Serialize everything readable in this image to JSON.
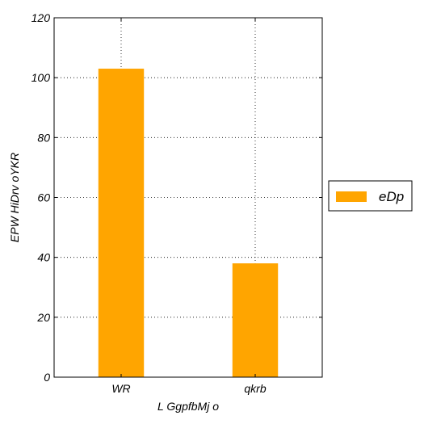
{
  "chart_data": {
    "type": "bar",
    "categories": [
      "WR",
      "qkrb"
    ],
    "series": [
      {
        "name": "eDp",
        "values": [
          103,
          38
        ],
        "color": "#ffa500"
      }
    ],
    "title": "",
    "xlabel": "L GgpfbMj o",
    "ylabel": "EPW HiDrv oYKR",
    "ylim": [
      0,
      120
    ],
    "yticks": [
      0,
      20,
      40,
      60,
      80,
      100,
      120
    ],
    "grid": true,
    "grid_style": "dotted",
    "legend_position": "right"
  }
}
